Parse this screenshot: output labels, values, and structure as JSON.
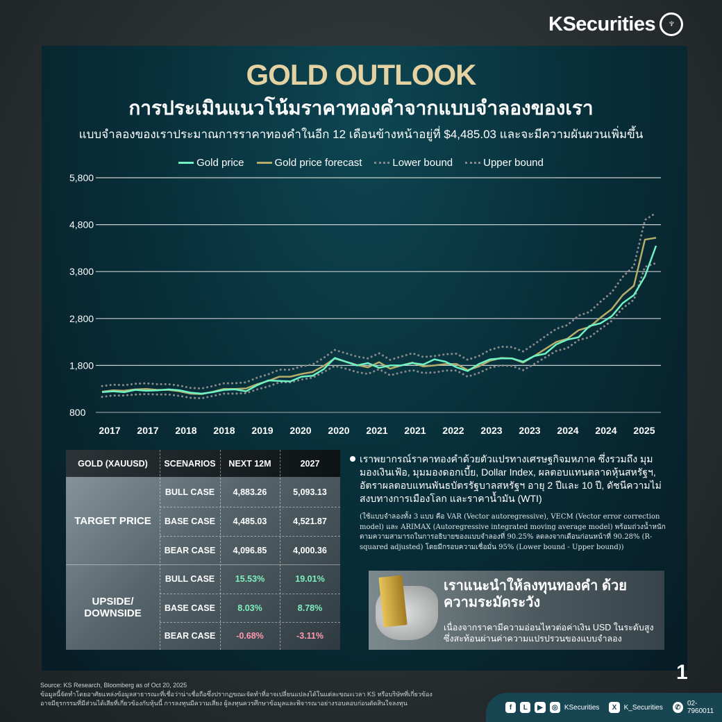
{
  "brand": {
    "logo": "KSecurities"
  },
  "header": {
    "title": "GOLD OUTLOOK",
    "subtitle": "การประเมินแนวโน้มราคาทองคำจากแบบจำลองของเรา",
    "description": "แบบจำลองของเราประมาณการราคาทองคำในอีก 12 เดือนข้างหน้าอยู่ที่ $4,485.03 และจะมีความผันผวนเพิ่มขึ้น"
  },
  "chart_data": {
    "type": "line",
    "title": "",
    "xlabel": "",
    "ylabel": "",
    "ylim": [
      800,
      5800
    ],
    "yticks": [
      "5,800",
      "4,800",
      "3,800",
      "2,800",
      "1,800",
      "800"
    ],
    "ytick_values": [
      5800,
      4800,
      3800,
      2800,
      1800,
      800
    ],
    "xticks": [
      "2017",
      "2017",
      "2018",
      "2018",
      "2019",
      "2020",
      "2020",
      "2021",
      "2021",
      "2022",
      "2023",
      "2023",
      "2024",
      "2024",
      "2025"
    ],
    "grid": true,
    "legend_placement": "top-center",
    "series": [
      {
        "name": "Gold price",
        "color": "#6ff2c4",
        "style": "solid",
        "values": [
          1230,
          1250,
          1230,
          1280,
          1260,
          1270,
          1290,
          1270,
          1220,
          1200,
          1230,
          1280,
          1290,
          1250,
          1380,
          1480,
          1470,
          1460,
          1560,
          1580,
          1720,
          1960,
          1880,
          1800,
          1850,
          1750,
          1800,
          1800,
          1850,
          1820,
          1930,
          1880,
          1760,
          1680,
          1830,
          1930,
          1950,
          1950,
          1880,
          2000,
          2050,
          2250,
          2350,
          2400,
          2640,
          2700,
          2850,
          3130,
          3300,
          3700,
          4350
        ]
      },
      {
        "name": "Gold price forecast",
        "color": "#b5ad6a",
        "style": "solid",
        "values": [
          1240,
          1270,
          1260,
          1290,
          1300,
          1280,
          1280,
          1250,
          1200,
          1190,
          1240,
          1300,
          1300,
          1310,
          1400,
          1470,
          1560,
          1560,
          1620,
          1660,
          1790,
          1950,
          1880,
          1810,
          1760,
          1870,
          1730,
          1800,
          1860,
          1780,
          1800,
          1830,
          1830,
          1700,
          1780,
          1900,
          1960,
          1950,
          1860,
          2000,
          2150,
          2300,
          2370,
          2550,
          2620,
          2820,
          3000,
          3300,
          3500,
          4480,
          4520
        ]
      },
      {
        "name": "Lower bound",
        "color": "#8a8a8a",
        "style": "dotted",
        "values": [
          1130,
          1160,
          1160,
          1180,
          1190,
          1180,
          1180,
          1150,
          1110,
          1100,
          1150,
          1200,
          1200,
          1210,
          1290,
          1350,
          1440,
          1440,
          1500,
          1540,
          1660,
          1790,
          1730,
          1660,
          1620,
          1720,
          1590,
          1650,
          1700,
          1640,
          1650,
          1690,
          1690,
          1560,
          1640,
          1750,
          1800,
          1790,
          1700,
          1830,
          1970,
          2110,
          2170,
          2340,
          2400,
          2580,
          2750,
          3020,
          3200,
          3900,
          3980
        ]
      },
      {
        "name": "Upper bound",
        "color": "#8a8a8a",
        "style": "dotted",
        "values": [
          1360,
          1390,
          1380,
          1410,
          1420,
          1400,
          1400,
          1370,
          1320,
          1310,
          1360,
          1420,
          1420,
          1440,
          1540,
          1610,
          1710,
          1710,
          1780,
          1820,
          1960,
          2130,
          2060,
          1990,
          1950,
          2060,
          1920,
          1990,
          2060,
          1980,
          2000,
          2040,
          2050,
          1920,
          2000,
          2130,
          2200,
          2190,
          2100,
          2250,
          2420,
          2580,
          2660,
          2860,
          2940,
          3160,
          3360,
          3690,
          3920,
          4900,
          5050
        ]
      }
    ]
  },
  "table": {
    "headers": [
      "GOLD (XAUUSD)",
      "SCENARIOS",
      "NEXT 12M",
      "2027"
    ],
    "groups": [
      {
        "label": "TARGET PRICE",
        "rows": [
          [
            "BULL CASE",
            "4,883.26",
            "5,093.13"
          ],
          [
            "BASE CASE",
            "4,485.03",
            "4,521.87"
          ],
          [
            "BEAR CASE",
            "4,096.85",
            "4,000.36"
          ]
        ]
      },
      {
        "label": "UPSIDE/ DOWNSIDE",
        "rows": [
          [
            "BULL CASE",
            "15.53%",
            "19.01%"
          ],
          [
            "BASE CASE",
            "8.03%",
            "8.78%"
          ],
          [
            "BEAR CASE",
            "-0.68%",
            "-3.11%"
          ]
        ]
      }
    ]
  },
  "bullet": "เราพยากรณ์ราคาทองคำด้วยตัวแปรทางเศรษฐกิจมหภาค ซึ่งรวมถึง มุมมองเงินเฟ้อ, มุมมองดอกเบี้ย, Dollar Index, ผลตอบแทนตลาดหุ้นสหรัฐฯ, อัตราผลตอบแทนพันธบัตรรัฐบาลสหรัฐฯ อายุ 2 ปีและ 10 ปี, ดัชนีความไม่สงบทางการเมืองโลก และราคาน้ำมัน (WTI)",
  "note": "(ใช้แบบจำลองทั้ง 3 แบบ คือ VAR (Vector autoregressive), VECM (Vector error correction model) และ ARIMAX (Autoregressive integrated moving average model) พร้อมถ่วงน้ำหนักตามความสามารถในการอธิบายของแบบจำลองที่ 90.25% ลดลงจากเดือนก่อนหน้าที่ 90.28% (R-squared adjusted) โดยมีกรอบความเชื่อมั่น 95% (Lower bound - Upper bound))",
  "recommendation": {
    "heading": "เราแนะนำให้ลงทุนทองคำ ด้วยความระมัดระวัง",
    "body": "เนื่องจากราคามีความอ่อนไหวต่อค่าเงิน USD ในระดับสูง ซึ่งสะท้อนผ่านค่าความแปรปรวนของแบบจำลอง"
  },
  "footer": {
    "source": "Source: KS Research, Bloomberg as of Oct 20, 2025",
    "disclaimer": "ข้อมูลนี้จัดทำโดยอาศัยแหล่งข้อมูลสาธารณะที่เชื่อว่าน่าเชื่อถือซึ่งปรากฏขณะจัดทำที่อาจเปลี่ยนแปลงได้ในแต่ละขณะเวลา KS หรือบริษัทที่เกี่ยวข้องอาจมีธุรกรรมที่มีส่วนได้เสียที่เกี่ยวข้องกับหุ้นนี้ การลงทุนมีความเสี่ยง ผู้ลงทุนควรศึกษาข้อมูลและพิจารณาอย่างรอบคอบก่อนตัดสินใจลงทุน",
    "page": "1"
  },
  "social": {
    "handle1": "KSecurities",
    "handle2": "K_Securities",
    "phone": "02-7960011"
  }
}
